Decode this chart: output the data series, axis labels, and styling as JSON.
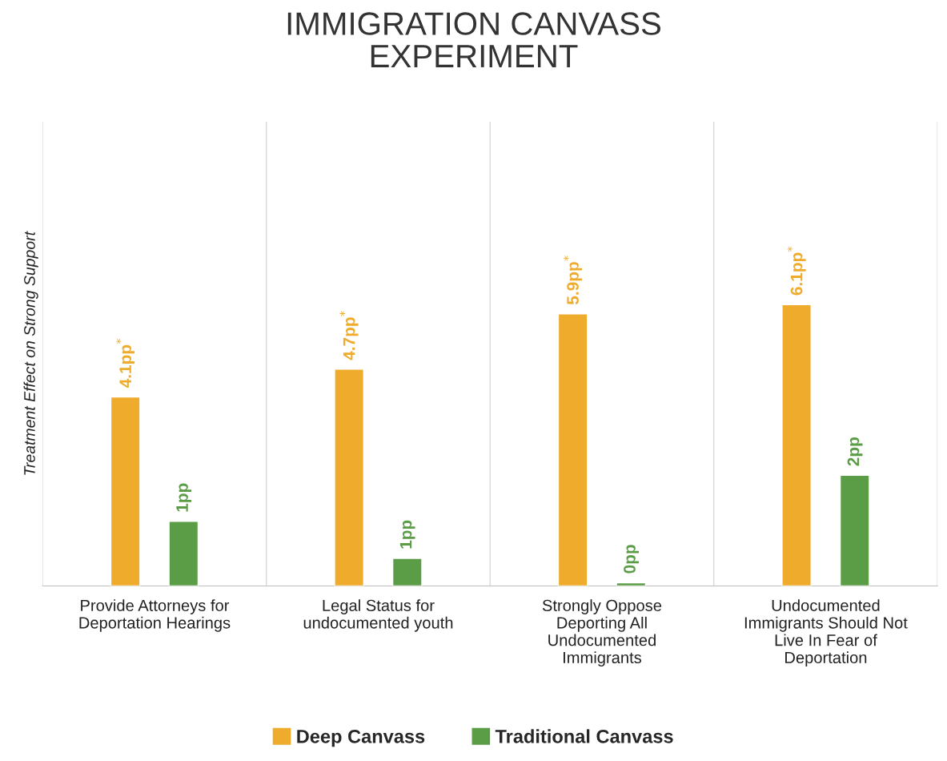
{
  "chart_data": {
    "type": "bar",
    "title": "IMMIGRATION CANVASS\nEXPERIMENT",
    "ylabel": "Treatment Effect on Strong Support",
    "categories": [
      "Provide Attorneys for\nDeportation Hearings",
      "Legal Status for\nundocumented youth",
      "Strongly Oppose\nDeporting All\nUndocumented\nImmigrants",
      "Undocumented\nImmigrants Should Not\nLive In Fear of\nDeportation"
    ],
    "series": [
      {
        "name": "Deep Canvass",
        "color": "#eeab2c",
        "values": [
          4.1,
          4.7,
          5.9,
          6.1
        ],
        "value_labels": [
          "4.1pp$^{*}$",
          "4.7pp$^{*}$",
          "5.9pp$^{*}$",
          "6.1pp$^{*}$"
        ]
      },
      {
        "name": "Traditional Canvass",
        "color": "#5b9c47",
        "values": [
          1.4,
          0.6,
          0.07,
          2.4
        ],
        "value_labels": [
          "1pp",
          "1pp",
          "0pp",
          "2pp"
        ]
      }
    ],
    "grid": "x",
    "legend": "bottom"
  }
}
